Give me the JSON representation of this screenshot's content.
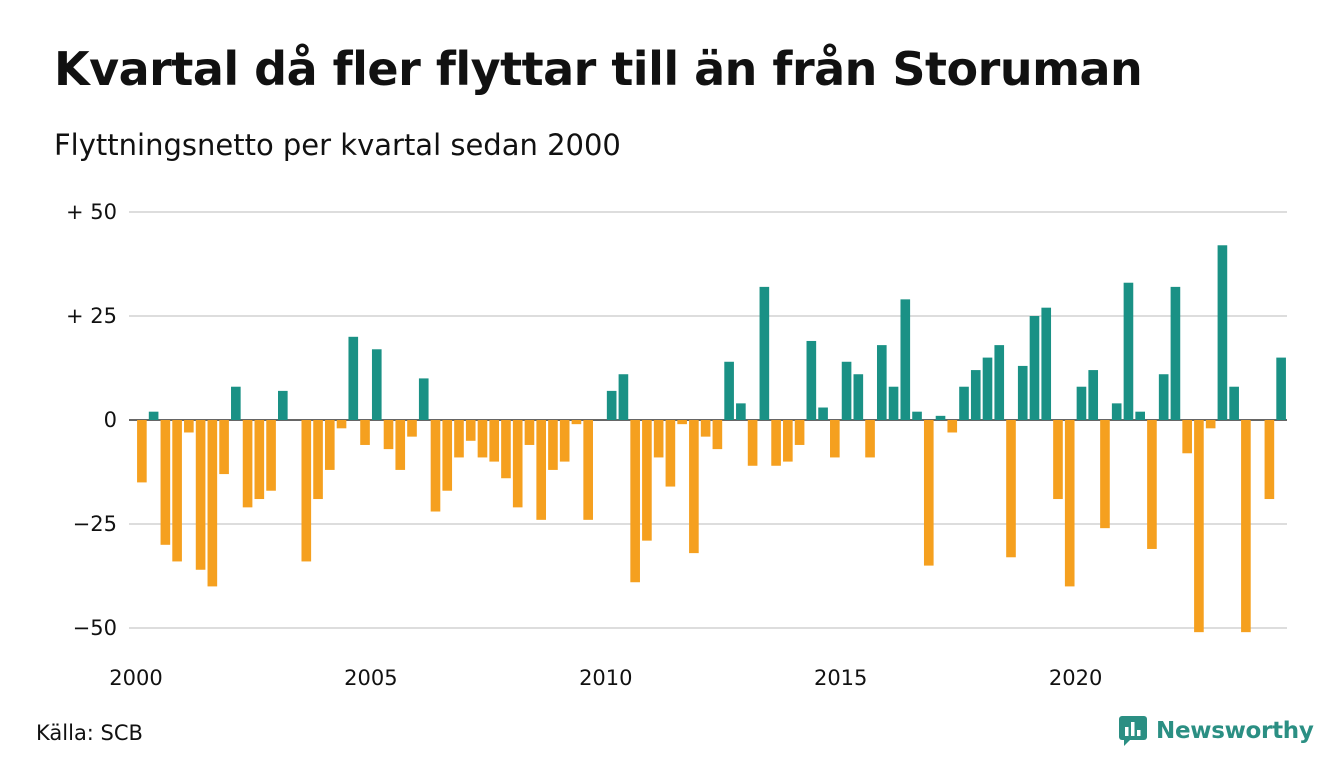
{
  "title": "Kvartal då fler flyttar till än från Storuman",
  "subtitle": "Flyttningsnetto per kvartal sedan 2000",
  "source": "Källa: SCB",
  "brand": "Newsworthy",
  "colors": {
    "positive": "#1a9185",
    "negative": "#f5a01f",
    "grid": "#dddddd",
    "brand": "#2b8f83"
  },
  "chart_data": {
    "type": "bar",
    "x_start": "2000 Q1",
    "y_ticks": [
      50,
      25,
      0,
      -25,
      -50
    ],
    "y_tick_labels": [
      "+ 50",
      "+ 25",
      "0",
      "−25",
      "−50"
    ],
    "ylim": [
      -55,
      50
    ],
    "x_tick_labels": [
      "2000",
      "2005",
      "2010",
      "2015",
      "2020"
    ],
    "values": [
      -15,
      2,
      -30,
      -34,
      -3,
      -36,
      -40,
      -13,
      8,
      -21,
      -19,
      -17,
      7,
      0,
      -34,
      -19,
      -12,
      -2,
      20,
      -6,
      17,
      -7,
      -12,
      -4,
      10,
      -22,
      -17,
      -9,
      -5,
      -9,
      -10,
      -14,
      -21,
      -6,
      -24,
      -12,
      -10,
      -1,
      -24,
      0,
      7,
      11,
      -39,
      -29,
      -9,
      -16,
      -1,
      -32,
      -4,
      -7,
      14,
      4,
      -11,
      32,
      -11,
      -10,
      -6,
      19,
      3,
      -9,
      14,
      11,
      -9,
      18,
      8,
      29,
      2,
      -35,
      1,
      -3,
      8,
      12,
      15,
      18,
      -33,
      13,
      25,
      27,
      -19,
      -40,
      8,
      12,
      -26,
      4,
      33,
      2,
      -31,
      11,
      32,
      -8,
      -51,
      -2,
      42,
      8,
      -51,
      0,
      -19,
      15
    ]
  }
}
